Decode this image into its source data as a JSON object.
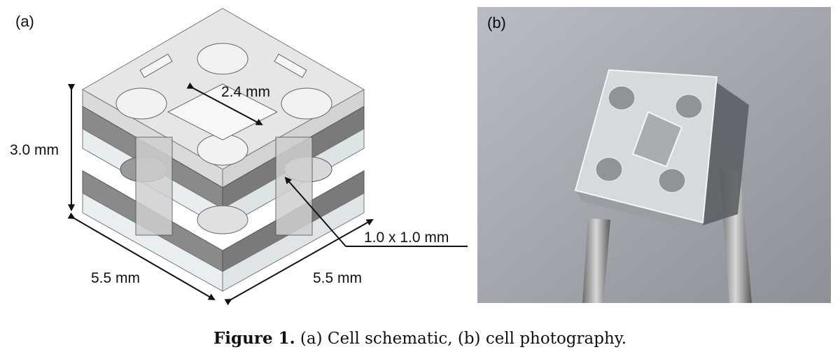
{
  "panels": {
    "a_label": "(a)",
    "b_label": "(b)"
  },
  "dimensions": {
    "height": "3.0 mm",
    "hole": "2.4 mm",
    "channel": "1.0 x 1.0 mm",
    "side_left": "5.5 mm",
    "side_right": "5.5 mm"
  },
  "caption": {
    "label": "Figure 1.",
    "text": " (a) Cell schematic, (b) cell photography."
  }
}
